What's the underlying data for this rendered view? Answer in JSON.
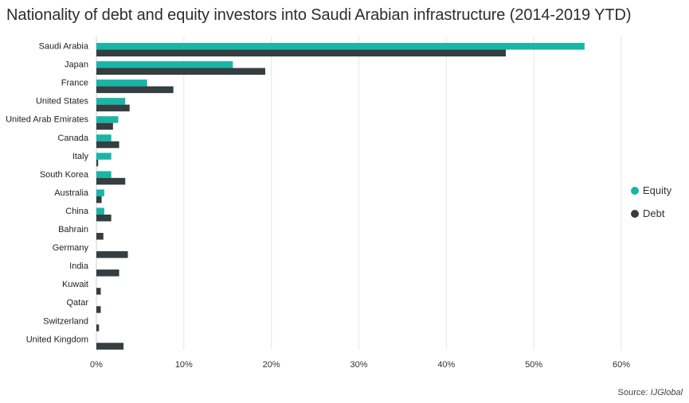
{
  "chart_data": {
    "type": "bar",
    "orientation": "horizontal",
    "title": "Nationality of debt and equity investors into Saudi Arabian infrastructure (2014-2019 YTD)",
    "categories": [
      "Saudi Arabia",
      "Japan",
      "France",
      "United States",
      "United Arab Emirates",
      "Canada",
      "Italy",
      "South Korea",
      "Australia",
      "China",
      "Bahrain",
      "Germany",
      "India",
      "Kuwait",
      "Qatar",
      "Switzerland",
      "United Kingdom"
    ],
    "series": [
      {
        "name": "Equity",
        "color": "#1ab5a6",
        "values": [
          55.8,
          15.6,
          5.8,
          3.3,
          2.5,
          1.7,
          1.7,
          1.7,
          0.9,
          0.9,
          0,
          0,
          0,
          0,
          0,
          0,
          0
        ]
      },
      {
        "name": "Debt",
        "color": "#353e40",
        "values": [
          46.8,
          19.3,
          8.8,
          3.8,
          1.9,
          2.6,
          0.2,
          3.3,
          0.6,
          1.7,
          0.8,
          3.6,
          2.6,
          0.5,
          0.5,
          0.3,
          3.1
        ]
      }
    ],
    "xlim": [
      0,
      60
    ],
    "xticks": [
      "0%",
      "10%",
      "20%",
      "30%",
      "40%",
      "50%",
      "60%"
    ],
    "grid": true,
    "legend_position": "right"
  },
  "source": {
    "label": "Source: ",
    "name": "IJGlobal"
  }
}
